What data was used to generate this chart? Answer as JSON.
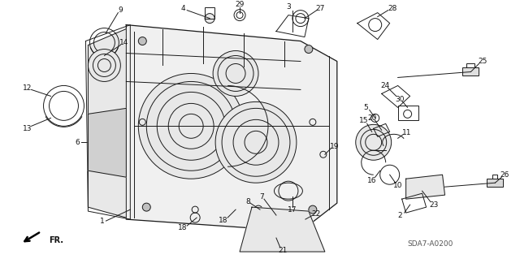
{
  "background_color": "#ffffff",
  "diagram_code": "SDA7-A0200",
  "line_color": "#1a1a1a",
  "text_color": "#111111"
}
